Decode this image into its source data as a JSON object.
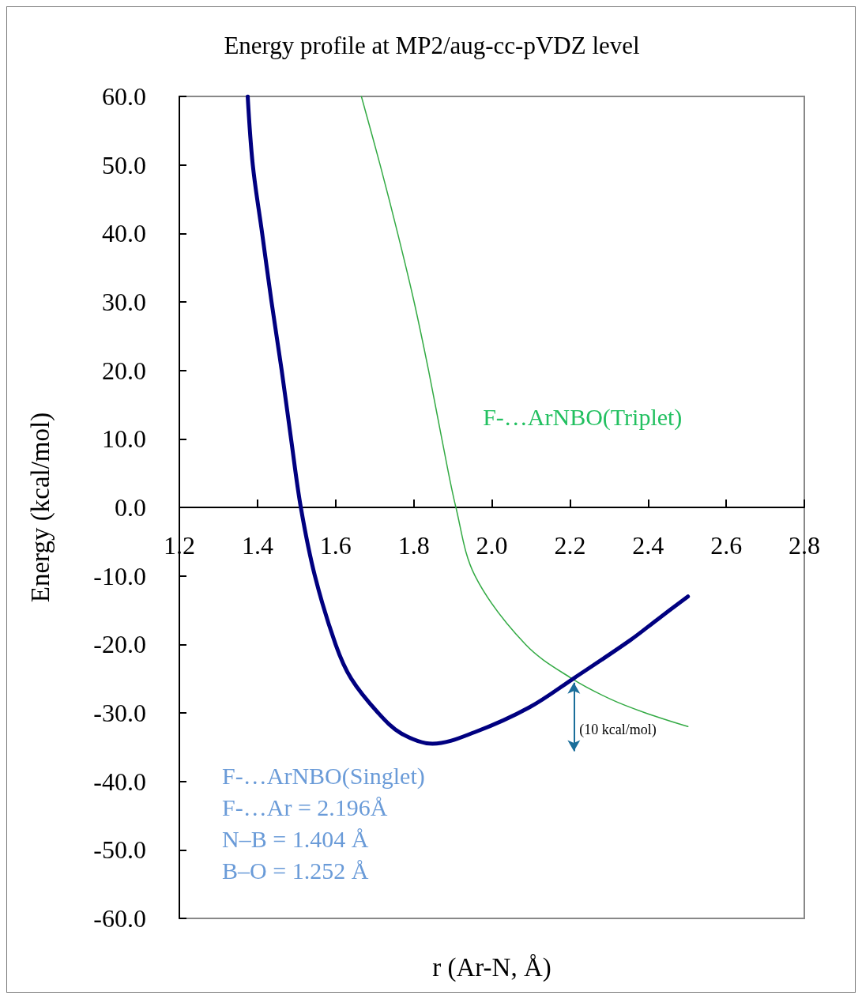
{
  "chart_data": {
    "type": "line",
    "title": "Energy profile at MP2/aug-cc-pVDZ level",
    "xlabel": "r (Ar-N, Å)",
    "ylabel": "Energy (kcal/mol)",
    "series": [
      {
        "name": "F-…ArNBO(Singlet)",
        "color": "#000080",
        "x": [
          1.375,
          1.388,
          1.412,
          1.436,
          1.462,
          1.486,
          1.511,
          1.547,
          1.6,
          1.64,
          1.709,
          1.768,
          1.848,
          1.957,
          2.096,
          2.211,
          2.354,
          2.423,
          2.502
        ],
        "values": [
          60,
          50,
          40,
          30,
          20,
          10,
          0,
          -10,
          -20,
          -25,
          -30,
          -33,
          -34.5,
          -32.8,
          -29.2,
          -24.9,
          -19.4,
          -16.4,
          -13.0
        ]
      },
      {
        "name": "F-…ArNBO(Triplet)",
        "color": "#33aa44",
        "x": [
          1.666,
          1.714,
          1.759,
          1.801,
          1.838,
          1.872,
          1.908,
          1.957,
          2.086,
          2.205,
          2.304,
          2.393,
          2.502
        ],
        "values": [
          60,
          50,
          40,
          30,
          20,
          10,
          0,
          -10,
          -20,
          -25,
          -28,
          -30,
          -32.0
        ]
      }
    ],
    "xlim": [
      1.2,
      2.8
    ],
    "xticks": [
      1.2,
      1.4,
      1.6,
      1.8,
      {
        "value": 2,
        "label": "2.0"
      },
      2.2,
      2.4,
      2.6,
      2.8
    ],
    "ylim": [
      -60,
      60
    ],
    "yticks": [
      {
        "value": -60,
        "label": "-60.0"
      },
      {
        "value": -50,
        "label": "-50.0"
      },
      {
        "value": -40,
        "label": "-40.0"
      },
      {
        "value": -30,
        "label": "-30.0"
      },
      {
        "value": -20,
        "label": "-20.0"
      },
      {
        "value": -10,
        "label": "-10.0"
      },
      {
        "value": 0,
        "label": "0.0"
      },
      {
        "value": 10,
        "label": "10.0"
      },
      {
        "value": 20,
        "label": "20.0"
      },
      {
        "value": 30,
        "label": "30.0"
      },
      {
        "value": 40,
        "label": "40.0"
      },
      {
        "value": 50,
        "label": "50.0"
      },
      {
        "value": 60,
        "label": "60.0"
      }
    ],
    "annotations": [
      {
        "text": "(10 kcal/mol)",
        "x": 2.21,
        "y": -25
      },
      "F-…Ar = 2.196Å",
      "N–B = 1.404 Å",
      "B–O = 1.252 Å"
    ],
    "grid": false,
    "legend": false,
    "marker": "none",
    "line_style": "solid"
  }
}
